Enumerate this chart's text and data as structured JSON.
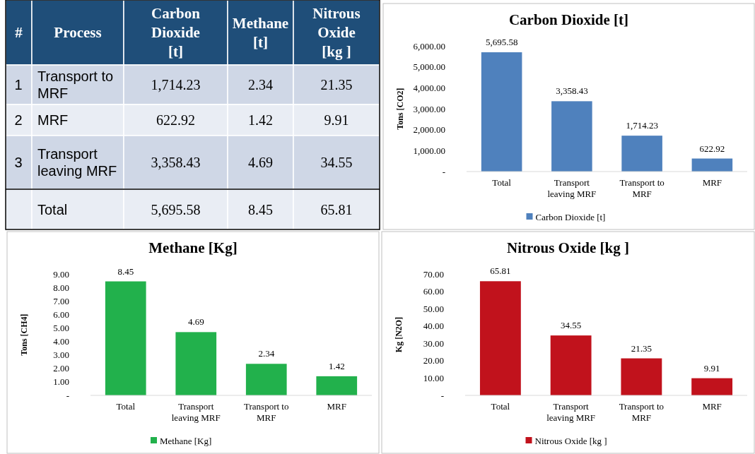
{
  "chart_data": [
    {
      "type": "other",
      "categories": [
        "#",
        "Process",
        "Carbon Dioxide [t]",
        "Methane [t]",
        "Nitrous Oxide [kg ]"
      ],
      "cell_labels": [
        [
          "1",
          "Transport to MRF",
          "1,714.23",
          "2.34",
          "21.35"
        ],
        [
          "2",
          "MRF",
          "622.92",
          "1.42",
          "9.91"
        ],
        [
          "3",
          "Transport leaving MRF",
          "3,358.43",
          "4.69",
          "34.55"
        ],
        [
          null,
          "Total",
          "5,695.58",
          "8.45",
          "65.81"
        ]
      ]
    },
    {
      "type": "bar",
      "title": "Carbon Dioxide [t]",
      "ylabel": "Tons [CO2]",
      "categories": [
        "Total",
        "Transport leaving MRF",
        "Transport to MRF",
        "MRF"
      ],
      "series": [
        {
          "name": "Carbon Dioxide [t]",
          "color": "#4f81bd",
          "values": [
            5695.58,
            3358.43,
            1714.23,
            622.92
          ],
          "value_labels": [
            "5,695.58",
            "3,358.43",
            "1,714.23",
            "622.92"
          ]
        }
      ],
      "ylim": [
        0,
        6000
      ],
      "yticks": [
        {
          "value": 0,
          "label": "-"
        },
        {
          "value": 1000,
          "label": "1,000.00"
        },
        {
          "value": 2000,
          "label": "2,000.00"
        },
        {
          "value": 3000,
          "label": "3,000.00"
        },
        {
          "value": 4000,
          "label": "4,000.00"
        },
        {
          "value": 5000,
          "label": "5,000.00"
        },
        {
          "value": 6000,
          "label": "6,000.00"
        }
      ],
      "legend": "bottom",
      "grid": false
    },
    {
      "type": "bar",
      "title": "Methane [Kg]",
      "ylabel": "Tons [CH4]",
      "categories": [
        "Total",
        "Transport leaving MRF",
        "Transport to MRF",
        "MRF"
      ],
      "series": [
        {
          "name": "Methane [Kg]",
          "color": "#22b14c",
          "values": [
            8.45,
            4.69,
            2.34,
            1.42
          ]
        }
      ],
      "ylim": [
        0,
        9
      ],
      "yticks": [
        {
          "value": 0,
          "label": "-"
        },
        {
          "value": 1,
          "label": "1.00"
        },
        {
          "value": 2,
          "label": "2.00"
        },
        {
          "value": 3,
          "label": "3.00"
        },
        {
          "value": 4,
          "label": "4.00"
        },
        {
          "value": 5,
          "label": "5.00"
        },
        {
          "value": 6,
          "label": "6.00"
        },
        {
          "value": 7,
          "label": "7.00"
        },
        {
          "value": 8,
          "label": "8.00"
        },
        {
          "value": 9,
          "label": "9.00"
        }
      ],
      "data_labels": true,
      "legend": "bottom",
      "grid": false
    },
    {
      "type": "bar",
      "title": "Nitrous Oxide [kg ]",
      "ylabel": "Kg [N2O]",
      "categories": [
        "Total",
        "Transport leaving MRF",
        "Transport to MRF",
        "MRF"
      ],
      "series": [
        {
          "name": "Nitrous Oxide [kg ]",
          "color": "#c1121c",
          "values": [
            65.81,
            34.55,
            21.35,
            9.91
          ]
        }
      ],
      "ylim": [
        0,
        70
      ],
      "yticks": [
        {
          "value": 0,
          "label": "-"
        },
        {
          "value": 10,
          "label": "10.00"
        },
        {
          "value": 20,
          "label": "20.00"
        },
        {
          "value": 30,
          "label": "30.00"
        },
        {
          "value": 40,
          "label": "40.00"
        },
        {
          "value": 50,
          "label": "50.00"
        },
        {
          "value": 60,
          "label": "60.00"
        },
        {
          "value": 70,
          "label": "70.00"
        }
      ],
      "data_labels": true,
      "legend": "bottom",
      "grid": false
    }
  ]
}
